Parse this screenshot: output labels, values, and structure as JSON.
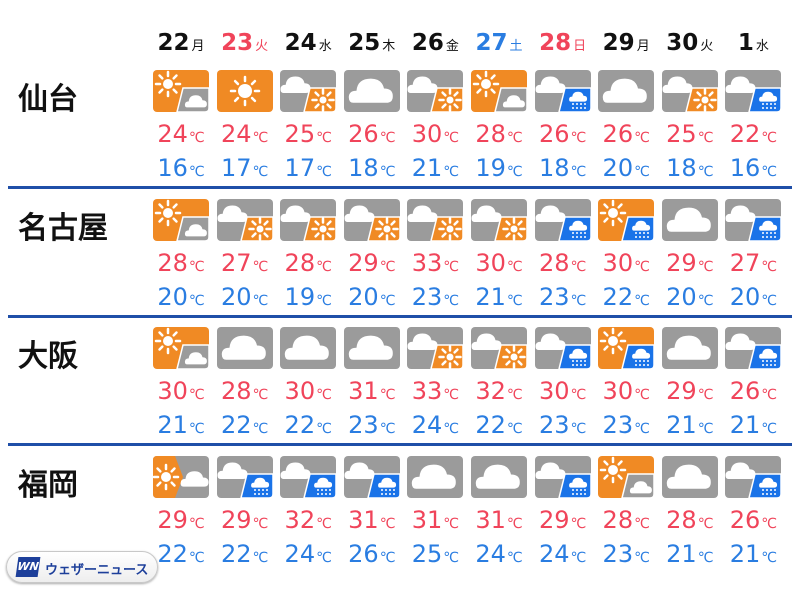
{
  "days": [
    {
      "date": "22",
      "weekday": "月",
      "color": "#111111"
    },
    {
      "date": "23",
      "weekday": "火",
      "color": "#f0445a"
    },
    {
      "date": "24",
      "weekday": "水",
      "color": "#111111"
    },
    {
      "date": "25",
      "weekday": "木",
      "color": "#111111"
    },
    {
      "date": "26",
      "weekday": "金",
      "color": "#111111"
    },
    {
      "date": "27",
      "weekday": "土",
      "color": "#2a7de1"
    },
    {
      "date": "28",
      "weekday": "日",
      "color": "#f0445a"
    },
    {
      "date": "29",
      "weekday": "月",
      "color": "#111111"
    },
    {
      "date": "30",
      "weekday": "火",
      "color": "#111111"
    },
    {
      "date": "1",
      "weekday": "水",
      "color": "#111111"
    }
  ],
  "unit": "℃",
  "colors": {
    "sun": "#f08a24",
    "cloud": "#9b9b9b",
    "rain": "#1a73e8",
    "high": "#f0445a",
    "low": "#2a7de1",
    "divider": "#1f4fa8"
  },
  "cities": [
    {
      "name": "仙台",
      "weather": [
        "sun-cloud",
        "sun",
        "cloud-sun",
        "cloud",
        "cloud-sun",
        "sun-cloud",
        "cloud-rain",
        "cloud",
        "cloud-sun",
        "cloud-rain"
      ],
      "high": [
        "24",
        "24",
        "25",
        "26",
        "30",
        "28",
        "26",
        "26",
        "25",
        "22"
      ],
      "low": [
        "16",
        "17",
        "17",
        "18",
        "21",
        "19",
        "18",
        "20",
        "18",
        "16"
      ]
    },
    {
      "name": "名古屋",
      "weather": [
        "sun-cloud",
        "cloud-sun",
        "cloud-sun",
        "cloud-sun",
        "cloud-sun",
        "cloud-sun",
        "cloud-rain",
        "sun-rain",
        "cloud",
        "cloud-rain"
      ],
      "high": [
        "28",
        "27",
        "28",
        "29",
        "33",
        "30",
        "28",
        "30",
        "29",
        "27"
      ],
      "low": [
        "20",
        "20",
        "19",
        "20",
        "23",
        "21",
        "23",
        "22",
        "20",
        "20"
      ]
    },
    {
      "name": "大阪",
      "weather": [
        "sun-cloud",
        "cloud",
        "cloud",
        "cloud",
        "cloud-sun",
        "cloud-sun",
        "cloud-rain",
        "sun-rain",
        "cloud",
        "cloud-rain"
      ],
      "high": [
        "30",
        "28",
        "30",
        "31",
        "33",
        "32",
        "30",
        "30",
        "29",
        "26"
      ],
      "low": [
        "21",
        "22",
        "22",
        "23",
        "24",
        "22",
        "23",
        "23",
        "21",
        "21"
      ]
    },
    {
      "name": "福岡",
      "weather": [
        "sun-then-cloud",
        "cloud-rain",
        "cloud-rain",
        "cloud-rain",
        "cloud",
        "cloud",
        "cloud-rain",
        "sun-cloud",
        "cloud",
        "cloud-rain"
      ],
      "high": [
        "29",
        "29",
        "32",
        "31",
        "31",
        "31",
        "29",
        "28",
        "28",
        "26"
      ],
      "low": [
        "22",
        "22",
        "24",
        "26",
        "25",
        "24",
        "24",
        "23",
        "21",
        "21"
      ]
    }
  ],
  "logo": {
    "mark": "WN",
    "text": "ウェザーニュース"
  }
}
